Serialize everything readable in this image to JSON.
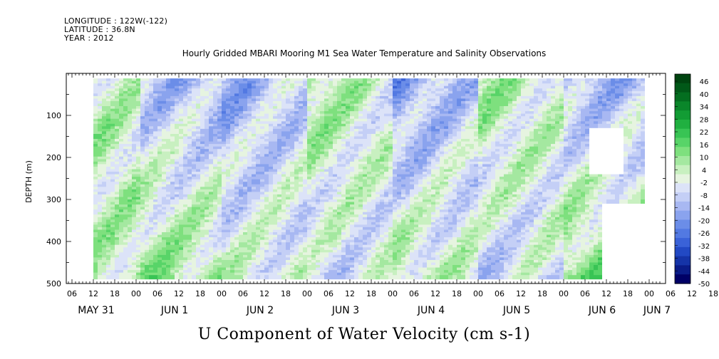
{
  "header": {
    "longitude": "LONGITUDE : 122W(-122)",
    "latitude": "LATITUDE : 36.8N",
    "year": "YEAR : 2012",
    "title": "Hourly Gridded MBARI Mooring M1 Sea Water Temperature and Salinity Observations"
  },
  "chart_data": {
    "type": "heatmap",
    "title": "Hourly Gridded MBARI Mooring M1 Sea Water Temperature and Salinity Observations",
    "xlabel": "",
    "ylabel": "DEPTH (m)",
    "caption": "U Component of Water Velocity (cm s-1)",
    "x_hour_ticks": [
      "06",
      "12",
      "18",
      "00",
      "06",
      "12",
      "18",
      "00",
      "06",
      "12",
      "18",
      "00",
      "06",
      "12",
      "18",
      "00",
      "06",
      "12",
      "18",
      "00",
      "06",
      "12",
      "18",
      "00",
      "06",
      "12",
      "18",
      "00",
      "06",
      "12",
      "18",
      "00"
    ],
    "x_day_labels": [
      "MAY 31",
      "JUN 1",
      "JUN 2",
      "JUN 3",
      "JUN 4",
      "JUN 5",
      "JUN 6",
      "JUN 7"
    ],
    "yticks": [
      100,
      200,
      300,
      400,
      500
    ],
    "ylim": [
      500,
      0
    ],
    "colorbar_labels": [
      "46",
      "40",
      "34",
      "28",
      "22",
      "16",
      "10",
      "4",
      "-2",
      "-8",
      "-14",
      "-20",
      "-26",
      "-32",
      "-38",
      "-44",
      "-50"
    ],
    "colorbar_range": [
      -50,
      52
    ],
    "colorbar_colors": [
      "#000066",
      "#0a1c88",
      "#1534a8",
      "#2249c4",
      "#3a62d8",
      "#5279e2",
      "#6b8de8",
      "#8aa3ee",
      "#a8b8f2",
      "#c4cff6",
      "#dce3f8",
      "#e6f4e0",
      "#c8f0c0",
      "#a4e8a0",
      "#7ee07e",
      "#58d468",
      "#38c454",
      "#20b040",
      "#129c34",
      "#0a862a",
      "#046e20",
      "#015818",
      "#004410"
    ],
    "u_velocity_summary_by_day": [
      {
        "day": "MAY 31",
        "upper_u": 10,
        "lower_u": 4
      },
      {
        "day": "JUN 1",
        "upper_u": -10,
        "lower_u": 12
      },
      {
        "day": "JUN 2",
        "upper_u": -16,
        "lower_u": 4
      },
      {
        "day": "JUN 3",
        "upper_u": 12,
        "lower_u": -6
      },
      {
        "day": "JUN 4",
        "upper_u": -18,
        "lower_u": 8
      },
      {
        "day": "JUN 5",
        "upper_u": 10,
        "lower_u": -8
      },
      {
        "day": "JUN 6",
        "upper_u": -12,
        "lower_u": 14
      }
    ]
  }
}
